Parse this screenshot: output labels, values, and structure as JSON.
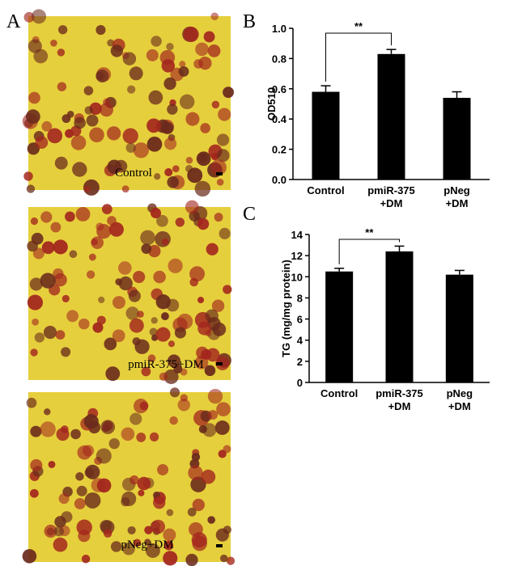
{
  "panel_labels": [
    "A",
    "B",
    "C"
  ],
  "images": [
    {
      "caption": "Control"
    },
    {
      "caption": "pmiR-375+DM"
    },
    {
      "caption": "pNeg+DM"
    }
  ],
  "chart_data": [
    {
      "type": "bar",
      "ylabel": "OD510",
      "categories": [
        "Control",
        "pmiR-375 +DM",
        "pNeg +DM"
      ],
      "values": [
        0.58,
        0.83,
        0.54
      ],
      "errors": [
        0.04,
        0.03,
        0.04
      ],
      "color": "#000000",
      "ylim": [
        0,
        1
      ],
      "yticks": [
        {
          "value": 0,
          "label": "0.0"
        },
        0.2,
        0.4,
        0.6,
        0.8,
        {
          "value": 1,
          "label": "1.0"
        }
      ],
      "annotation": "**"
    },
    {
      "type": "bar",
      "ylabel": "TG  (mg/mg protein)",
      "categories": [
        "Control",
        "pmiR-375 +DM",
        "pNeg +DM"
      ],
      "values": [
        10.5,
        12.4,
        10.2
      ],
      "errors": [
        0.3,
        0.5,
        0.4
      ],
      "color": "#000000",
      "ylim": [
        0,
        14
      ],
      "yticks": [
        0,
        2,
        4,
        6,
        8,
        10,
        12,
        14
      ],
      "annotation": "**"
    }
  ]
}
